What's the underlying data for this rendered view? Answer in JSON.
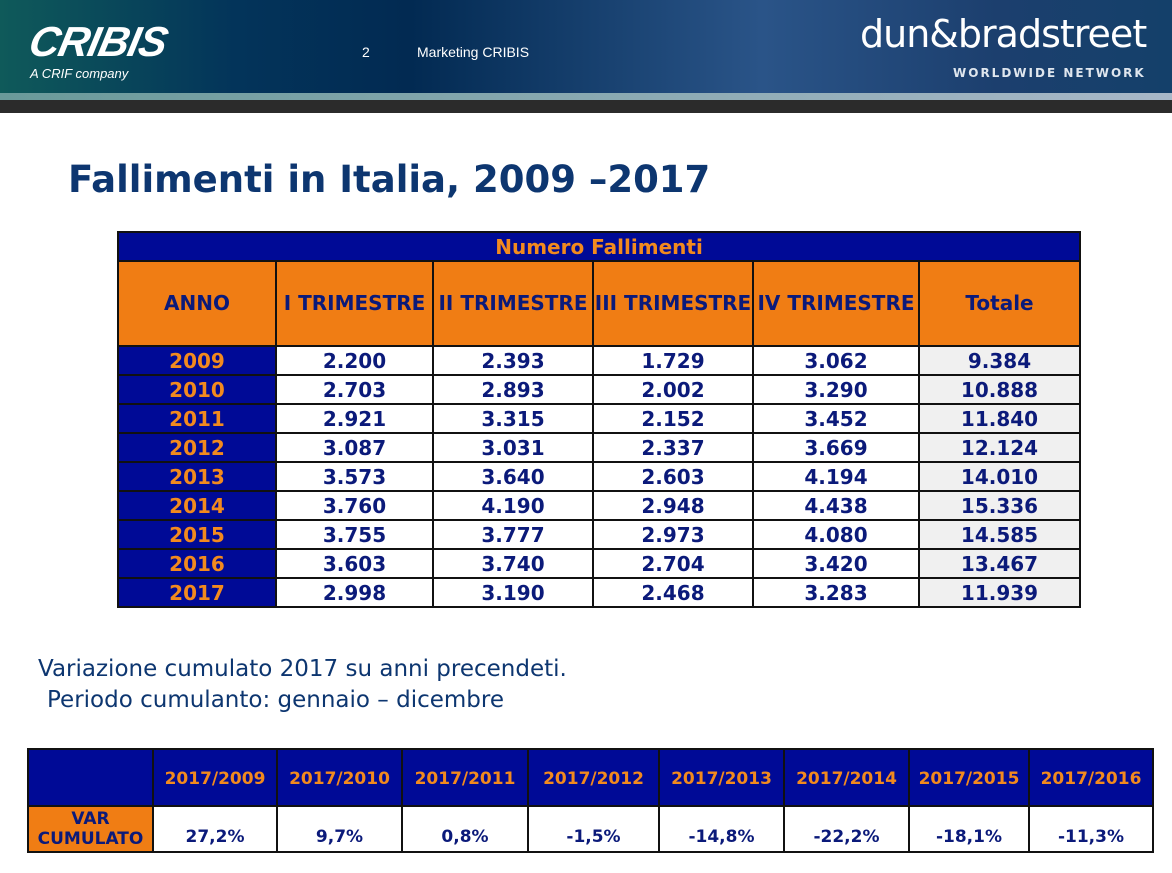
{
  "header": {
    "logo": "CRIBIS",
    "logo_sub": "A CRIF company",
    "page_number": "2",
    "deck_title": "Marketing CRIBIS",
    "partner_logo": "dun&bradstreet",
    "partner_sub": "WORLDWIDE NETWORK"
  },
  "title": "Fallimenti in Italia, 2009 –2017",
  "table": {
    "caption": "Numero Fallimenti",
    "headers": [
      "ANNO",
      "I TRIMESTRE",
      "II TRIMESTRE",
      "III TRIMESTRE",
      "IV TRIMESTRE",
      "Totale"
    ],
    "rows": [
      [
        "2009",
        "2.200",
        "2.393",
        "1.729",
        "3.062",
        "9.384"
      ],
      [
        "2010",
        "2.703",
        "2.893",
        "2.002",
        "3.290",
        "10.888"
      ],
      [
        "2011",
        "2.921",
        "3.315",
        "2.152",
        "3.452",
        "11.840"
      ],
      [
        "2012",
        "3.087",
        "3.031",
        "2.337",
        "3.669",
        "12.124"
      ],
      [
        "2013",
        "3.573",
        "3.640",
        "2.603",
        "4.194",
        "14.010"
      ],
      [
        "2014",
        "3.760",
        "4.190",
        "2.948",
        "4.438",
        "15.336"
      ],
      [
        "2015",
        "3.755",
        "3.777",
        "2.973",
        "4.080",
        "14.585"
      ],
      [
        "2016",
        "3.603",
        "3.740",
        "2.704",
        "3.420",
        "13.467"
      ],
      [
        "2017",
        "2.998",
        "3.190",
        "2.468",
        "3.283",
        "11.939"
      ]
    ]
  },
  "note": {
    "line1": "Variazione cumulato 2017 su anni precendeti.",
    "line2": "Periodo cumulanto: gennaio – dicembre"
  },
  "var_table": {
    "label": "VAR CUMULATO",
    "headers": [
      "2017/2009",
      "2017/2010",
      "2017/2011",
      "2017/2012",
      "2017/2013",
      "2017/2014",
      "2017/2015",
      "2017/2016"
    ],
    "values": [
      "27,2%",
      "9,7%",
      "0,8%",
      "-1,5%",
      "-14,8%",
      "-22,2%",
      "-18,1%",
      "-11,3%"
    ]
  }
}
